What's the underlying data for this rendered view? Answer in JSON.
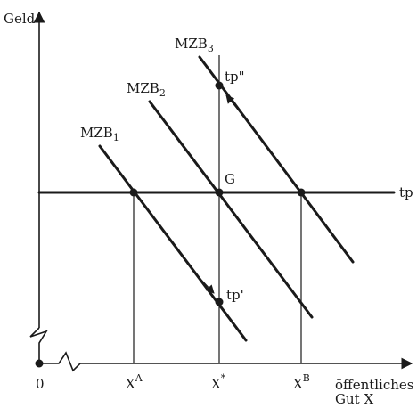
{
  "axes": {
    "y_label": "Geld",
    "x_label_line1": "öffentliches",
    "x_label_line2": "Gut X",
    "origin_label": "0"
  },
  "x_ticks": {
    "a_main": "X",
    "a_sup": "A",
    "star_main": "X",
    "star_sup": "*",
    "b_main": "X",
    "b_sup": "B"
  },
  "curves": {
    "mzb1_main": "MZB",
    "mzb1_sub": "1",
    "mzb2_main": "MZB",
    "mzb2_sub": "2",
    "mzb3_main": "MZB",
    "mzb3_sub": "3"
  },
  "price_line_label": "tp",
  "points": {
    "g": "G",
    "tp_high": "tp\"",
    "tp_low": "tp'"
  }
}
